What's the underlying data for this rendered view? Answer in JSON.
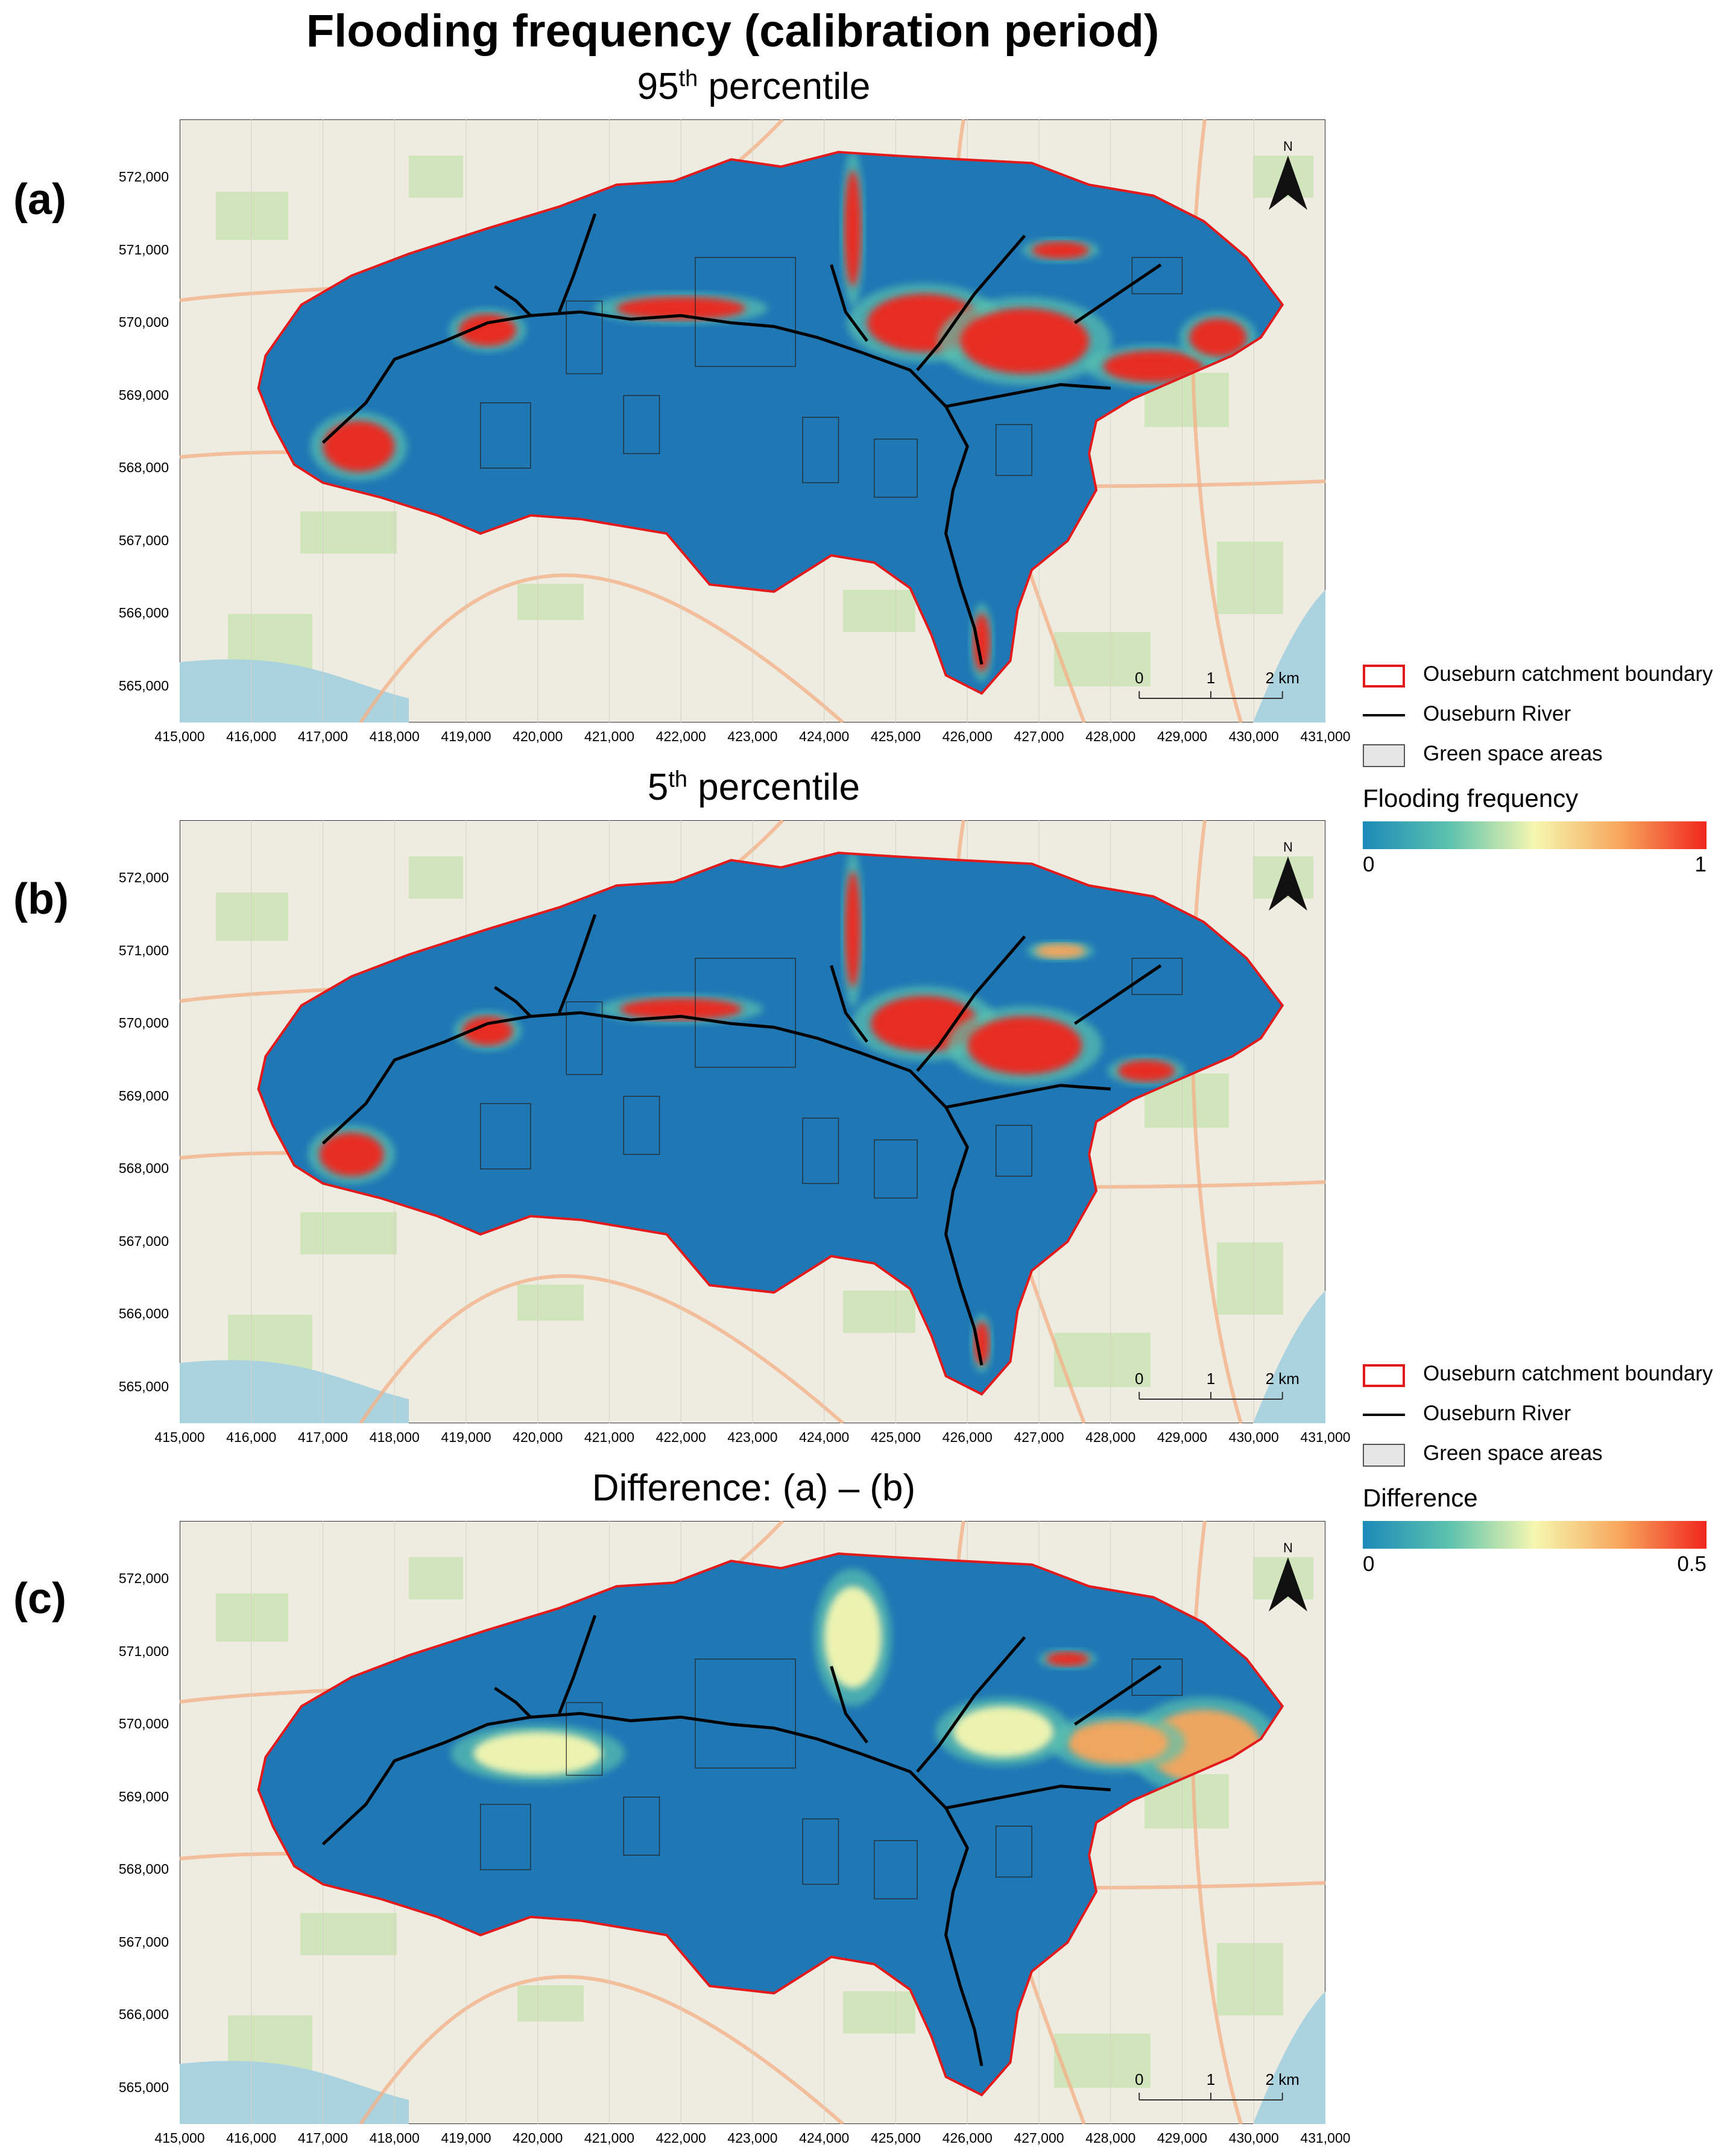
{
  "title": "Flooding frequency (calibration period)",
  "panels": [
    {
      "letter": "(a)",
      "title_main": "95",
      "title_sup": "th",
      "title_rest": " percentile",
      "mode": "freq95"
    },
    {
      "letter": "(b)",
      "title_main": "5",
      "title_sup": "th",
      "title_rest": " percentile",
      "mode": "freq5"
    },
    {
      "letter": "(c)",
      "title_main": "Difference: (a) – (b)",
      "title_sup": "",
      "title_rest": "",
      "mode": "diff"
    }
  ],
  "axes": {
    "x_ticks": [
      "415,000",
      "416,000",
      "417,000",
      "418,000",
      "419,000",
      "420,000",
      "421,000",
      "422,000",
      "423,000",
      "424,000",
      "425,000",
      "426,000",
      "427,000",
      "428,000",
      "429,000",
      "430,000",
      "431,000"
    ],
    "y_ticks": [
      "572,000",
      "571,000",
      "570,000",
      "569,000",
      "568,000",
      "567,000",
      "566,000",
      "565,000"
    ],
    "x_range": [
      415000,
      431000
    ],
    "y_range": [
      564500,
      572800
    ]
  },
  "map_elements": {
    "north_arrow_label": "N",
    "scale_bar_labels": [
      "0",
      "1",
      "2 km"
    ]
  },
  "legend_top": {
    "boundary_label": "Ouseburn catchment boundary",
    "river_label": "Ouseburn River",
    "green_label": "Green space areas",
    "ramp_title": "Flooding frequency",
    "ramp_min": "0",
    "ramp_max": "1"
  },
  "legend_bottom": {
    "boundary_label": "Ouseburn catchment boundary",
    "river_label": "Ouseburn River",
    "green_label": "Green space areas",
    "ramp_title": "Difference",
    "ramp_min": "0",
    "ramp_max": "0.5"
  },
  "colors": {
    "catchment_fill": "#1f77b4",
    "boundary": "#e31a1c",
    "river": "#000000",
    "basemap": "#eeebe0",
    "ramp": [
      "#1c8ab8",
      "#5cc2ae",
      "#f6f7b0",
      "#f7a65c",
      "#f0261e"
    ]
  }
}
